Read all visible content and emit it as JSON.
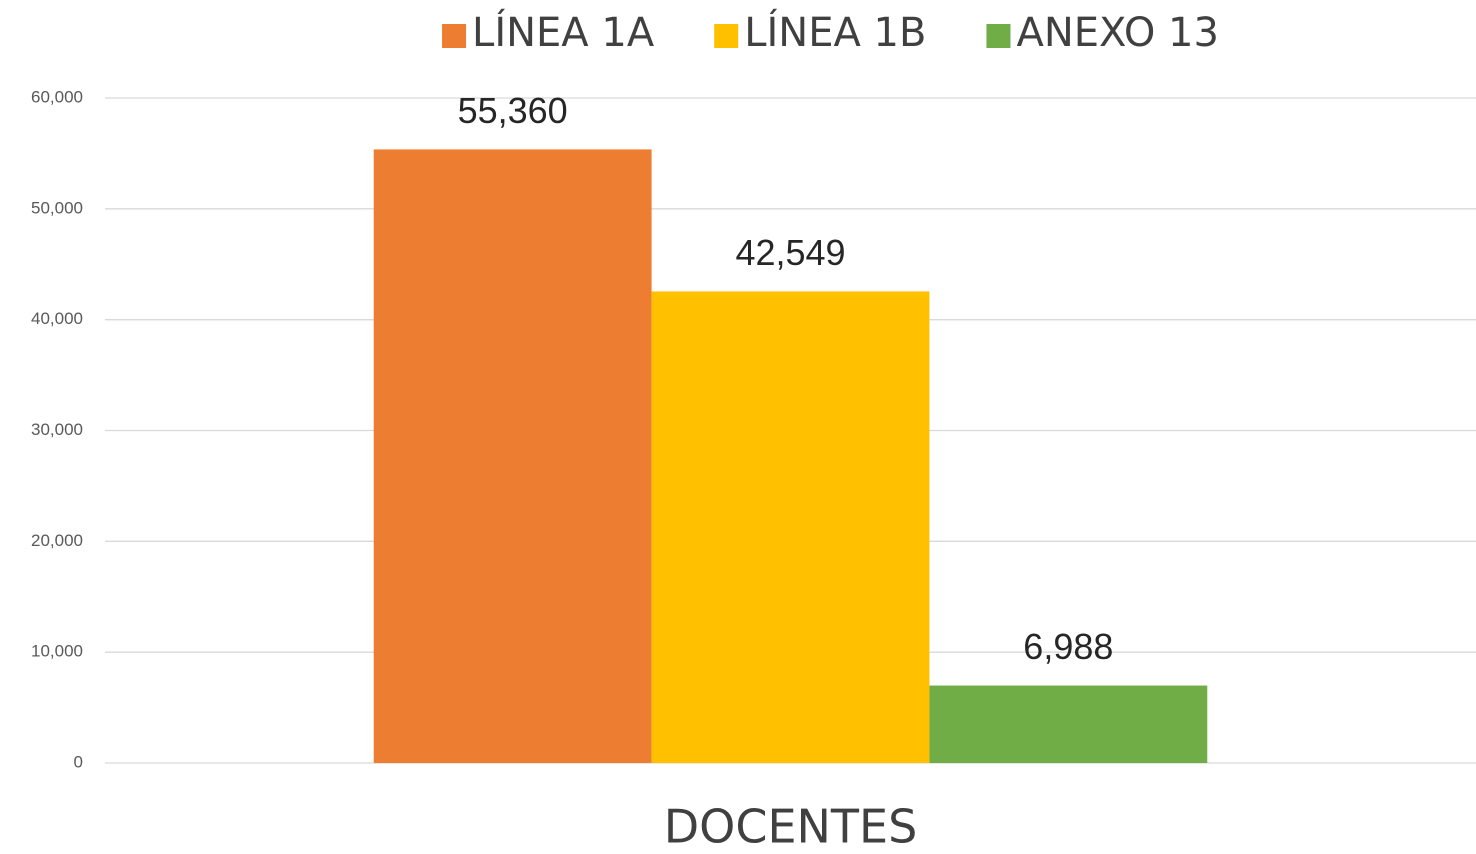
{
  "chart_data": {
    "type": "bar",
    "categories": [
      "DOCENTES"
    ],
    "series": [
      {
        "name": "LÍNEA 1A",
        "color": "#ed7d31",
        "values": [
          55360
        ],
        "value_labels": [
          "55,360"
        ]
      },
      {
        "name": "LÍNEA 1B",
        "color": "#ffc000",
        "values": [
          42549
        ],
        "value_labels": [
          "42,549"
        ]
      },
      {
        "name": "ANEXO 13",
        "color": "#70ad47",
        "values": [
          6988
        ],
        "value_labels": [
          "6,988"
        ]
      }
    ],
    "ylim": [
      0,
      60000
    ],
    "yticks": [
      0,
      {
        "value": 10000,
        "label": "10,000"
      },
      {
        "value": 20000,
        "label": "20,000"
      },
      {
        "value": 30000,
        "label": "30,000"
      },
      {
        "value": 40000,
        "label": "40,000"
      },
      {
        "value": 50000,
        "label": "50,000"
      },
      {
        "value": 60000,
        "label": "60,000"
      }
    ],
    "grid": true,
    "legend": "top"
  }
}
